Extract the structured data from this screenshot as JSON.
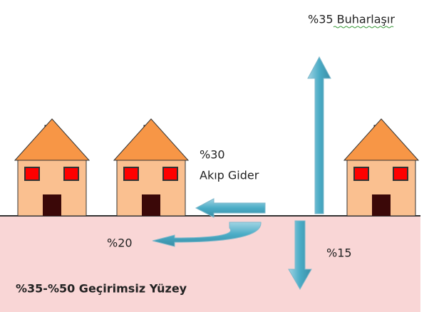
{
  "labels": {
    "evaporation": "%35 Buharlaşır",
    "runoff_percent": "%30",
    "runoff_text": "Akıp Gider",
    "shallow": "%20",
    "deep": "%15",
    "surface": "%35-%50 Geçirimsiz Yüzey"
  }
}
